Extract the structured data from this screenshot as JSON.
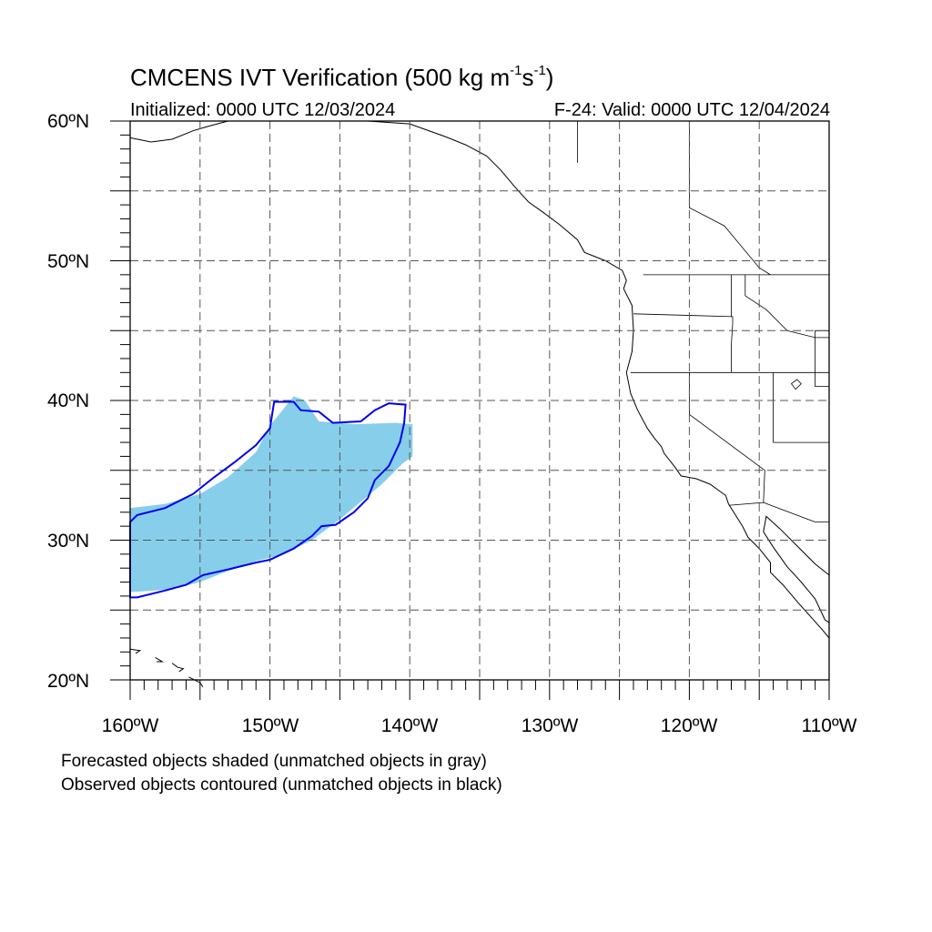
{
  "figure": {
    "title_main": "CMCENS IVT Verification (500 kg m",
    "title_exp1": "-1",
    "title_mid": "s",
    "title_exp2": "-1",
    "title_end": ")",
    "initialized": "Initialized: 0000 UTC 12/03/2024",
    "valid": "F-24: Valid: 0000 UTC 12/04/2024",
    "note_forecast": "Forecasted objects shaded (unmatched objects in gray)",
    "note_observed": "Observed objects contoured (unmatched objects in black)"
  },
  "axes": {
    "lat_labels": [
      "60ºN",
      "50ºN",
      "40ºN",
      "30ºN",
      "20ºN"
    ],
    "lon_labels": [
      "160ºW",
      "150ºW",
      "140ºW",
      "130ºW",
      "120ºW",
      "110ºW"
    ],
    "lon_range": [
      -160,
      -110
    ],
    "lat_range": [
      20,
      60
    ],
    "grid_spacing_deg": 5,
    "grid_style": "dashed"
  },
  "colors": {
    "forecast_fill": "#87ceeb",
    "observed_contour": "#0000ee",
    "coastline": "#000000",
    "grid": "#555555"
  },
  "forecast_object": {
    "description": "Forecasted IVT object (matched)",
    "polygon_lonlat": [
      [
        -160,
        32.3
      ],
      [
        -157.5,
        32.6
      ],
      [
        -155,
        33.3
      ],
      [
        -153,
        34.5
      ],
      [
        -151,
        36.3
      ],
      [
        -150,
        38.2
      ],
      [
        -148.3,
        40.3
      ],
      [
        -147.5,
        40.0
      ],
      [
        -146.5,
        38.5
      ],
      [
        -144,
        38.3
      ],
      [
        -141,
        38.4
      ],
      [
        -139.8,
        38.3
      ],
      [
        -139.8,
        36
      ],
      [
        -140.5,
        35.5
      ],
      [
        -142,
        34
      ],
      [
        -145,
        31.5
      ],
      [
        -147,
        30
      ],
      [
        -149,
        29
      ],
      [
        -151,
        28.5
      ],
      [
        -153,
        27.8
      ],
      [
        -155,
        27
      ],
      [
        -157,
        26.5
      ],
      [
        -159.5,
        26.3
      ],
      [
        -160,
        26.3
      ]
    ]
  },
  "observed_object": {
    "description": "Observed IVT object (matched)",
    "polygon_lonlat": [
      [
        -160,
        31.3
      ],
      [
        -159.5,
        31.8
      ],
      [
        -157.5,
        32.3
      ],
      [
        -155.5,
        33.3
      ],
      [
        -154,
        34.5
      ],
      [
        -152.5,
        35.6
      ],
      [
        -151,
        36.8
      ],
      [
        -150,
        38
      ],
      [
        -149.7,
        39.9
      ],
      [
        -148.3,
        39.9
      ],
      [
        -147.8,
        39.3
      ],
      [
        -146.5,
        39.2
      ],
      [
        -145.5,
        38.4
      ],
      [
        -143.5,
        38.5
      ],
      [
        -142.5,
        39.3
      ],
      [
        -141.5,
        39.8
      ],
      [
        -140.3,
        39.7
      ],
      [
        -140.4,
        38.4
      ],
      [
        -140.7,
        37
      ],
      [
        -141.5,
        35.3
      ],
      [
        -142.5,
        34.3
      ],
      [
        -143,
        33
      ],
      [
        -144,
        32
      ],
      [
        -145.3,
        31.1
      ],
      [
        -146.3,
        31
      ],
      [
        -147,
        30.3
      ],
      [
        -148.3,
        29.4
      ],
      [
        -150,
        28.6
      ],
      [
        -151,
        28.4
      ],
      [
        -153,
        27.9
      ],
      [
        -154.8,
        27.5
      ],
      [
        -156,
        26.8
      ],
      [
        -157.5,
        26.4
      ],
      [
        -159.5,
        25.9
      ],
      [
        -160,
        25.9
      ]
    ]
  },
  "boundaries": {
    "coastline_lonlat": [
      [
        -143,
        60
      ],
      [
        -140,
        59.8
      ],
      [
        -137.5,
        58.9
      ],
      [
        -136,
        58.3
      ],
      [
        -134.5,
        57.5
      ],
      [
        -133.5,
        56.5
      ],
      [
        -132.5,
        55.3
      ],
      [
        -131.5,
        54.2
      ],
      [
        -130.5,
        53.5
      ],
      [
        -129.3,
        52.6
      ],
      [
        -128,
        51.5
      ],
      [
        -127.5,
        50.6
      ],
      [
        -126,
        50
      ],
      [
        -124.8,
        49.3
      ],
      [
        -124.5,
        48.6
      ],
      [
        -124.7,
        48
      ],
      [
        -124.1,
        46.8
      ],
      [
        -124,
        45
      ],
      [
        -124.1,
        43.5
      ],
      [
        -124.5,
        42
      ],
      [
        -124.2,
        40.5
      ],
      [
        -123.7,
        39.3
      ],
      [
        -123,
        38
      ],
      [
        -122.5,
        37.3
      ],
      [
        -122,
        36.7
      ],
      [
        -121.8,
        36.2
      ],
      [
        -121,
        35.2
      ],
      [
        -120.6,
        34.6
      ],
      [
        -119.5,
        34.4
      ],
      [
        -118.5,
        34
      ],
      [
        -117.4,
        33.2
      ],
      [
        -117.2,
        32.6
      ],
      [
        -116.7,
        31.8
      ],
      [
        -116.2,
        31
      ],
      [
        -115.8,
        30.2
      ],
      [
        -115,
        29.4
      ],
      [
        -114.2,
        28.4
      ],
      [
        -114.2,
        27.7
      ],
      [
        -113.3,
        26.8
      ],
      [
        -112.2,
        25.5
      ],
      [
        -111.3,
        24.5
      ],
      [
        -110.5,
        23.6
      ],
      [
        -110,
        23
      ]
    ],
    "alaska_lonlat": [
      [
        -160,
        58.8
      ],
      [
        -158.5,
        58.5
      ],
      [
        -157,
        58.7
      ],
      [
        -155.5,
        59.3
      ],
      [
        -154.5,
        59.6
      ],
      [
        -153,
        60
      ]
    ],
    "gulf_lonlat": [
      [
        -110,
        27.5
      ],
      [
        -111,
        28.3
      ],
      [
        -112.5,
        29.8
      ],
      [
        -113.5,
        30.8
      ],
      [
        -114.5,
        31.7
      ],
      [
        -114.7,
        30.6
      ],
      [
        -114,
        29.5
      ],
      [
        -113,
        28.1
      ],
      [
        -112,
        27
      ],
      [
        -111,
        25.8
      ],
      [
        -110.3,
        24.3
      ],
      [
        -110,
        24.1
      ]
    ],
    "borders_lonlat": [
      [
        [
          -123.3,
          49
        ],
        [
          -110,
          49
        ]
      ],
      [
        [
          -124.2,
          42
        ],
        [
          -110,
          42
        ]
      ],
      [
        [
          -120,
          42
        ],
        [
          -120,
          39
        ],
        [
          -114.6,
          35
        ],
        [
          -114.7,
          32.7
        ],
        [
          -117.1,
          32.5
        ]
      ],
      [
        [
          -124,
          46.2
        ],
        [
          -116.9,
          46
        ],
        [
          -116.9,
          45.5
        ],
        [
          -117,
          44
        ],
        [
          -117,
          42
        ]
      ],
      [
        [
          -117,
          49
        ],
        [
          -117,
          46
        ]
      ],
      [
        [
          -116,
          49
        ],
        [
          -116,
          47.5
        ],
        [
          -114.5,
          46.5
        ],
        [
          -113,
          45
        ],
        [
          -111,
          44.5
        ],
        [
          -110,
          44.5
        ]
      ],
      [
        [
          -114,
          42
        ],
        [
          -114,
          37
        ],
        [
          -110,
          37
        ]
      ],
      [
        [
          -114.7,
          32.7
        ],
        [
          -111,
          31.3
        ],
        [
          -110,
          31.3
        ]
      ],
      [
        [
          -110,
          45
        ],
        [
          -111,
          45
        ],
        [
          -111,
          41
        ],
        [
          -110,
          41
        ]
      ],
      [
        [
          -128,
          60
        ],
        [
          -128,
          57
        ]
      ],
      [
        [
          -120,
          60
        ],
        [
          -120,
          53.8
        ],
        [
          -117.5,
          52.5
        ],
        [
          -115,
          49.5
        ],
        [
          -114.2,
          49
        ]
      ]
    ],
    "great_salt_lake_lonlat": [
      [
        -112.7,
        41.2
      ],
      [
        -112.3,
        41.5
      ],
      [
        -112,
        41.2
      ],
      [
        -112.4,
        40.8
      ],
      [
        -112.7,
        41.2
      ]
    ],
    "hawaii_lonlat": [
      [
        [
          -160,
          22.2
        ],
        [
          -159.3,
          22.1
        ],
        [
          -159.6,
          21.9
        ]
      ],
      [
        [
          -158.2,
          21.6
        ],
        [
          -157.7,
          21.3
        ],
        [
          -158.1,
          21.3
        ]
      ],
      [
        [
          -157,
          21.2
        ],
        [
          -156.6,
          20.9
        ],
        [
          -156.2,
          20.8
        ],
        [
          -156.5,
          20.6
        ]
      ],
      [
        [
          -155.8,
          20.2
        ],
        [
          -155,
          19.8
        ],
        [
          -154.8,
          19.5
        ]
      ]
    ]
  }
}
